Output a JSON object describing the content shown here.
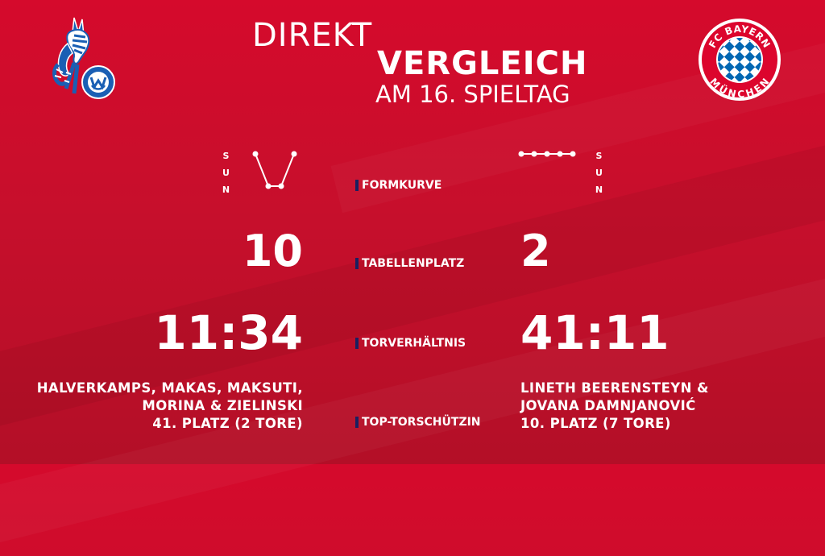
{
  "title": {
    "line1": "DIREKT",
    "line2": "VERGLEICH",
    "line3": "AM 16. SPIELTAG"
  },
  "teams": {
    "home": {
      "logo_icon": "msv-duisburg-zebra-logo-icon",
      "colors": {
        "blue": "#1a5fb4",
        "white": "#ffffff"
      }
    },
    "away": {
      "logo_icon": "fc-bayern-muenchen-logo-icon",
      "logo_text_top": "FC BAYERN",
      "logo_text_bottom": "MÜNCHEN",
      "colors": {
        "red": "#dc052d",
        "blue": "#0066b2",
        "white": "#ffffff"
      }
    }
  },
  "legend_letters": [
    "S",
    "U",
    "N"
  ],
  "form": {
    "home": [
      "S",
      "N",
      "N",
      "S"
    ],
    "away": [
      "S",
      "S",
      "S",
      "S",
      "S"
    ]
  },
  "labels": {
    "formkurve": "FORMKURVE",
    "tabellenplatz": "TABELLENPLATZ",
    "torverhaeltnis": "TORVERHÄLTNIS",
    "torschuetzin": "TOP-TORSCHÜTZIN"
  },
  "table_position": {
    "home": "10",
    "away": "2"
  },
  "goal_ratio": {
    "home": "11:34",
    "away": "41:11"
  },
  "top_scorer": {
    "home": {
      "line1": "HALVERKAMPS, MAKAS, MAKSUTI,",
      "line2": "MORINA & ZIELINSKI",
      "line3": "41. PLATZ (2 TORE)"
    },
    "away": {
      "line1": "LINETH BEERENSTEYN &",
      "line2": "JOVANA DAMNJANOVIĆ",
      "line3": "10. PLATZ (7 TORE)"
    }
  },
  "colors": {
    "background": "#c70f2c",
    "label_marker": "#1a2060",
    "text": "#ffffff"
  }
}
